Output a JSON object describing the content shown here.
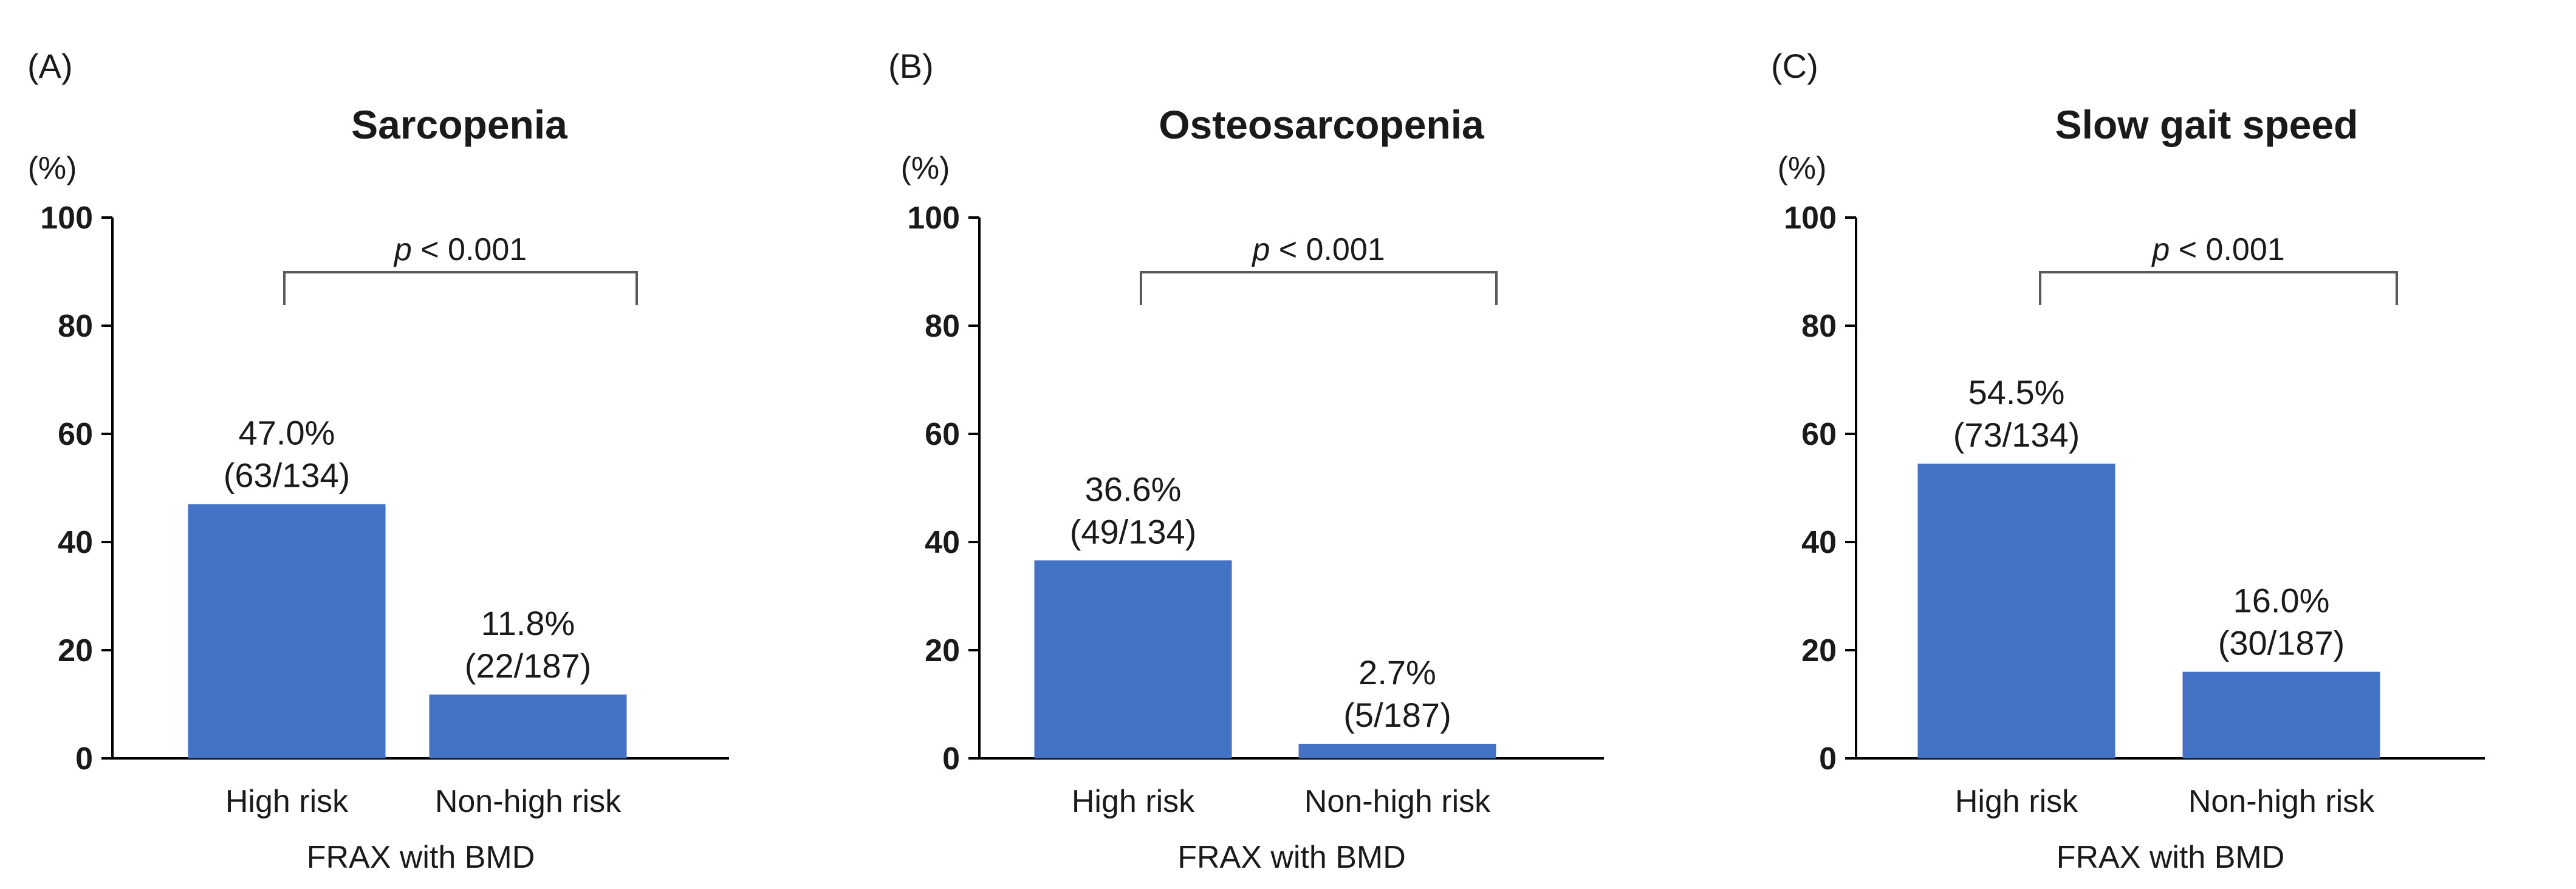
{
  "chart_data": [
    {
      "type": "bar",
      "panel": "(A)",
      "title": "Sarcopenia",
      "unit": "(%)",
      "xlabel": "FRAX with BMD",
      "ylabel": "(%)",
      "ylim": [
        0,
        100
      ],
      "yticks": [
        "0",
        "20",
        "40",
        "60",
        "80",
        "100"
      ],
      "categories": [
        "High risk",
        "Non-high risk"
      ],
      "values": [
        47.0,
        11.8
      ],
      "labels": [
        [
          "47.0%",
          "(63/134)"
        ],
        [
          "11.8%",
          "(22/187)"
        ]
      ],
      "p_label": "< 0.001",
      "p_italic": "p",
      "color": "#4472C4"
    },
    {
      "type": "bar",
      "panel": "(B)",
      "title": "Osteosarcopenia",
      "unit": "(%)",
      "xlabel": "FRAX with BMD",
      "ylabel": "(%)",
      "ylim": [
        0,
        100
      ],
      "yticks": [
        "0",
        "20",
        "40",
        "60",
        "80",
        "100"
      ],
      "categories": [
        "High risk",
        "Non-high risk"
      ],
      "values": [
        36.6,
        2.7
      ],
      "labels": [
        [
          "36.6%",
          "(49/134)"
        ],
        [
          "2.7%",
          "(5/187)"
        ]
      ],
      "p_label": "< 0.001",
      "p_italic": "p",
      "color": "#4472C4"
    },
    {
      "type": "bar",
      "panel": "(C)",
      "title": "Slow gait speed",
      "unit": "(%)",
      "xlabel": "FRAX with BMD",
      "ylabel": "(%)",
      "ylim": [
        0,
        100
      ],
      "yticks": [
        "0",
        "20",
        "40",
        "60",
        "80",
        "100"
      ],
      "categories": [
        "High risk",
        "Non-high risk"
      ],
      "values": [
        54.5,
        16.0
      ],
      "labels": [
        [
          "54.5%",
          "(73/134)"
        ],
        [
          "16.0%",
          "(30/187)"
        ]
      ],
      "p_label": "< 0.001",
      "p_italic": "p",
      "color": "#4472C4"
    }
  ]
}
